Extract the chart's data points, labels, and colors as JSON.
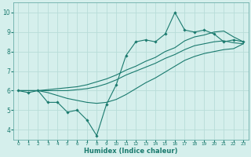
{
  "xlabel": "Humidex (Indice chaleur)",
  "ylabel": "",
  "bg_color": "#d5efec",
  "grid_color": "#b8ddd8",
  "line_color": "#1a7a6e",
  "xlim": [
    -0.5,
    23.5
  ],
  "ylim": [
    3.5,
    10.5
  ],
  "xticks": [
    0,
    1,
    2,
    3,
    4,
    5,
    6,
    7,
    8,
    9,
    10,
    11,
    12,
    13,
    14,
    15,
    16,
    17,
    18,
    19,
    20,
    21,
    22,
    23
  ],
  "yticks": [
    4,
    5,
    6,
    7,
    8,
    9,
    10
  ],
  "x_main": [
    0,
    1,
    2,
    3,
    4,
    5,
    6,
    7,
    8,
    9,
    10,
    11,
    12,
    13,
    14,
    15,
    16,
    17,
    18,
    19,
    20,
    21,
    22,
    23
  ],
  "y_zigzag": [
    6.0,
    5.9,
    6.0,
    5.4,
    5.4,
    4.9,
    5.0,
    4.5,
    3.7,
    5.3,
    6.3,
    7.8,
    8.5,
    8.6,
    8.5,
    8.9,
    10.0,
    9.1,
    9.0,
    9.1,
    8.9,
    8.5,
    8.6,
    8.5
  ],
  "y_upper": [
    6.0,
    6.0,
    6.0,
    6.05,
    6.1,
    6.15,
    6.2,
    6.3,
    6.45,
    6.6,
    6.8,
    7.05,
    7.25,
    7.5,
    7.7,
    8.0,
    8.2,
    8.55,
    8.75,
    8.85,
    9.0,
    9.05,
    8.75,
    8.5
  ],
  "y_mid": [
    6.0,
    6.0,
    6.0,
    6.0,
    6.0,
    6.0,
    6.05,
    6.1,
    6.2,
    6.35,
    6.55,
    6.8,
    7.0,
    7.2,
    7.4,
    7.65,
    7.85,
    8.1,
    8.3,
    8.4,
    8.5,
    8.55,
    8.45,
    8.4
  ],
  "y_lower": [
    6.0,
    6.0,
    6.0,
    5.9,
    5.75,
    5.6,
    5.5,
    5.4,
    5.35,
    5.4,
    5.55,
    5.8,
    6.1,
    6.4,
    6.65,
    6.95,
    7.25,
    7.55,
    7.75,
    7.9,
    8.0,
    8.1,
    8.15,
    8.4
  ]
}
